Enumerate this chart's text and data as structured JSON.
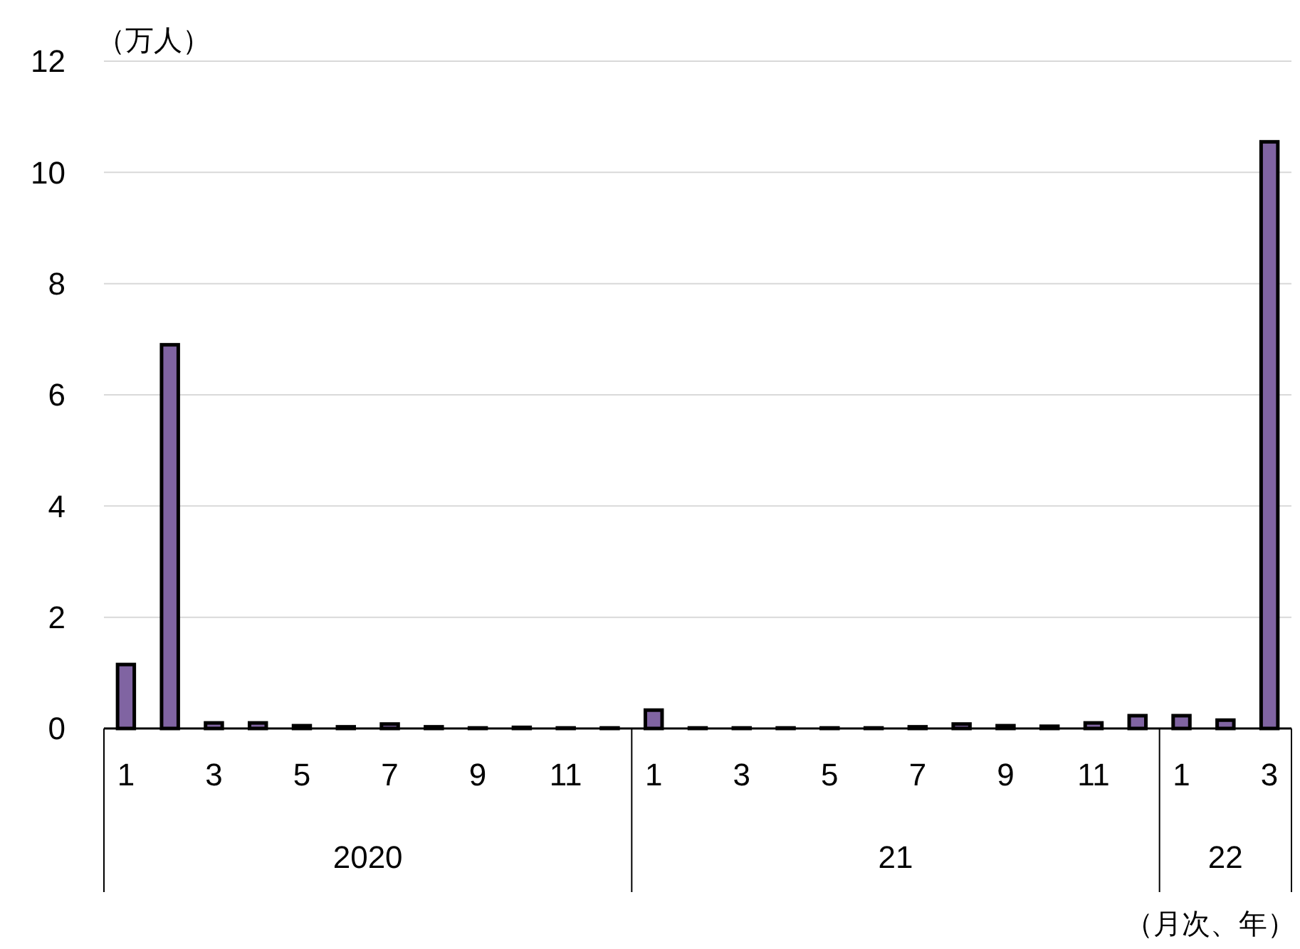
{
  "chart_data": {
    "type": "bar",
    "ylabel": "（万人）",
    "xlabel": "（月次、年）",
    "categories": [
      "1",
      null,
      "3",
      null,
      "5",
      null,
      "7",
      null,
      "9",
      null,
      "11",
      null,
      "1",
      null,
      "3",
      null,
      "5",
      null,
      "7",
      null,
      "9",
      null,
      "11",
      null,
      "1",
      null,
      "3"
    ],
    "values": [
      1.15,
      6.9,
      0.1,
      0.1,
      0.05,
      0.03,
      0.08,
      0.03,
      0.01,
      0.02,
      0.01,
      0.01,
      0.33,
      0.01,
      0.01,
      0.01,
      0.01,
      0.01,
      0.03,
      0.08,
      0.05,
      0.04,
      0.1,
      0.23,
      0.23,
      0.15,
      10.55
    ],
    "color": "#8064a2",
    "ylim": [
      0,
      12
    ],
    "yticks": [
      0,
      2,
      4,
      6,
      8,
      10,
      12
    ],
    "grid": "y",
    "annotations": [
      "2020",
      "21",
      "22"
    ]
  }
}
